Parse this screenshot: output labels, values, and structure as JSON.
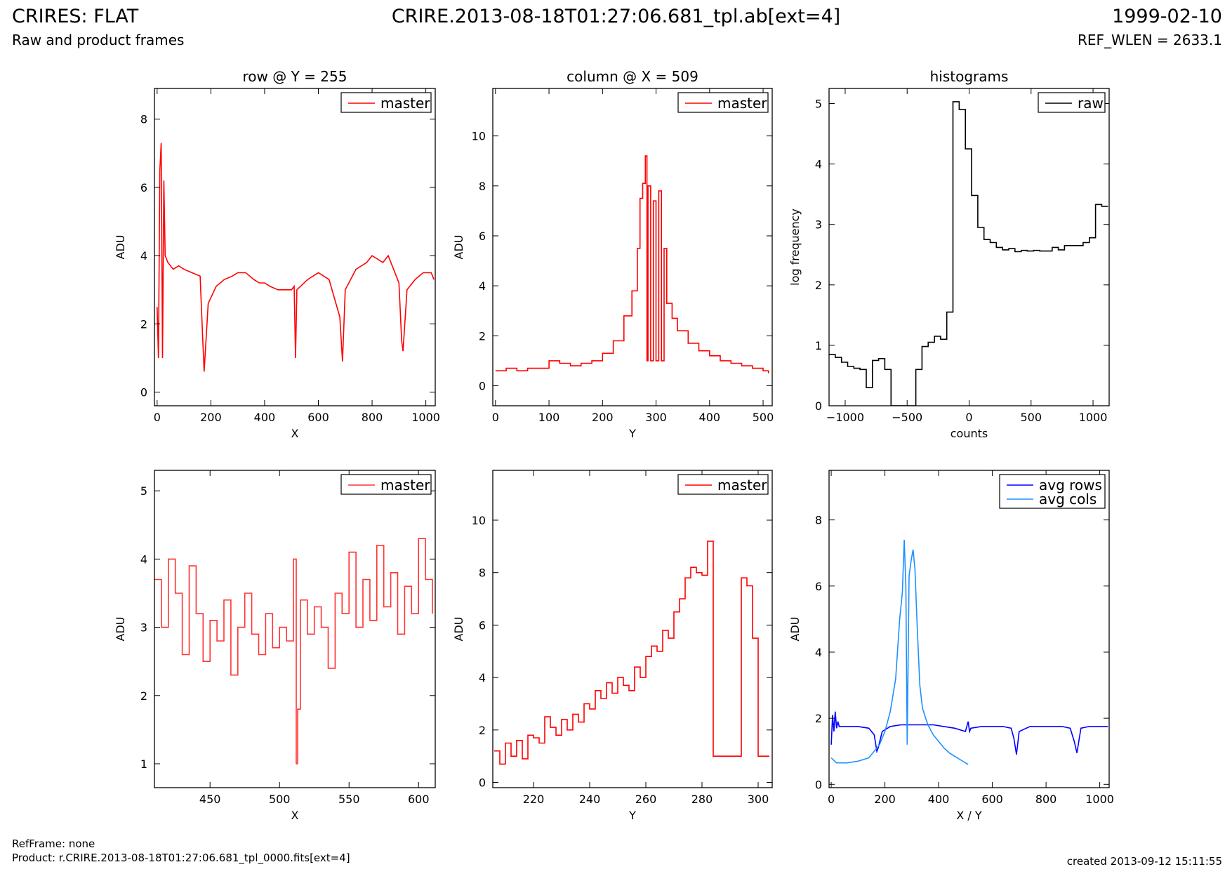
{
  "header": {
    "title": "CRIRES: FLAT",
    "subtitle": "Raw and product frames",
    "file_ext": "CRIRE.2013-08-18T01:27:06.681_tpl.ab[ext=4]",
    "date": "1999-02-10",
    "ref_wlen": "REF_WLEN = 2633.1"
  },
  "footer": {
    "refframe": "RefFrame: none",
    "product": "Product: r.CRIRE.2013-08-18T01:27:06.681_tpl_0000.fits[ext=4]",
    "created": "created 2013-09-12 15:11:55"
  },
  "colors": {
    "master": "#ff0000",
    "raw": "#000000",
    "avg_rows": "#0000ff",
    "avg_cols": "#1e90ff"
  },
  "chart_data": [
    {
      "type": "line",
      "title": "row @ Y = 255",
      "xlabel": "X",
      "ylabel": "ADU",
      "xlim": [
        -10,
        1035
      ],
      "ylim": [
        -0.4,
        8.9
      ],
      "xticks": [
        0,
        200,
        400,
        600,
        800,
        1000
      ],
      "yticks": [
        0,
        2,
        4,
        6,
        8
      ],
      "legend_position": "top-right",
      "series": [
        {
          "name": "master",
          "color": "#ff0000",
          "step": false,
          "x": [
            0,
            5,
            10,
            15,
            20,
            25,
            30,
            40,
            60,
            80,
            100,
            130,
            160,
            170,
            175,
            190,
            220,
            250,
            280,
            300,
            330,
            360,
            380,
            400,
            420,
            450,
            480,
            500,
            510,
            515,
            520,
            560,
            600,
            640,
            680,
            690,
            700,
            740,
            780,
            800,
            820,
            840,
            860,
            880,
            900,
            910,
            915,
            930,
            960,
            990,
            1020,
            1030
          ],
          "y": [
            2.5,
            1.0,
            6.5,
            7.3,
            1.0,
            6.2,
            4.0,
            3.8,
            3.6,
            3.7,
            3.6,
            3.5,
            3.4,
            1.5,
            0.6,
            2.6,
            3.1,
            3.3,
            3.4,
            3.5,
            3.5,
            3.3,
            3.2,
            3.2,
            3.1,
            3.0,
            3.0,
            3.0,
            3.1,
            1.0,
            3.0,
            3.3,
            3.5,
            3.3,
            2.2,
            0.9,
            3.0,
            3.6,
            3.8,
            4.0,
            3.9,
            3.8,
            4.0,
            3.6,
            3.2,
            1.5,
            1.2,
            3.0,
            3.3,
            3.5,
            3.5,
            3.3
          ]
        }
      ]
    },
    {
      "type": "line",
      "title": "column @ X = 509",
      "xlabel": "Y",
      "ylabel": "ADU",
      "xlim": [
        -5,
        517
      ],
      "ylim": [
        -0.8,
        11.9
      ],
      "xticks": [
        0,
        100,
        200,
        300,
        400,
        500
      ],
      "yticks": [
        0,
        2,
        4,
        6,
        8,
        10
      ],
      "legend_position": "top-right",
      "series": [
        {
          "name": "master",
          "color": "#ff0000",
          "step": true,
          "x": [
            0,
            20,
            40,
            60,
            80,
            100,
            120,
            140,
            160,
            180,
            200,
            220,
            240,
            255,
            265,
            270,
            275,
            280,
            283,
            285,
            290,
            295,
            300,
            305,
            310,
            315,
            320,
            330,
            340,
            360,
            380,
            400,
            420,
            440,
            460,
            480,
            500,
            510
          ],
          "y": [
            0.6,
            0.7,
            0.6,
            0.7,
            0.7,
            1.0,
            0.9,
            0.8,
            0.9,
            1.0,
            1.3,
            1.8,
            2.8,
            3.8,
            5.5,
            7.5,
            8.1,
            9.2,
            1.0,
            8.0,
            1.0,
            7.4,
            1.0,
            7.8,
            1.0,
            5.5,
            3.3,
            2.7,
            2.2,
            1.7,
            1.4,
            1.2,
            1.0,
            0.9,
            0.8,
            0.7,
            0.6,
            0.5
          ]
        }
      ]
    },
    {
      "type": "line",
      "title": "histograms",
      "xlabel": "counts",
      "ylabel": "log frequency",
      "xlim": [
        -1130,
        1130
      ],
      "ylim": [
        0,
        5.25
      ],
      "xticks": [
        -1000,
        -500,
        0,
        500,
        1000
      ],
      "yticks": [
        0,
        1,
        2,
        3,
        4,
        5
      ],
      "legend_position": "top-right",
      "series": [
        {
          "name": "raw",
          "color": "#000000",
          "step": true,
          "x": [
            -1130,
            -1080,
            -1030,
            -980,
            -930,
            -880,
            -830,
            -780,
            -730,
            -680,
            -630,
            -580,
            -530,
            -480,
            -430,
            -380,
            -330,
            -280,
            -230,
            -180,
            -130,
            -80,
            -30,
            20,
            70,
            120,
            170,
            220,
            270,
            320,
            370,
            420,
            470,
            520,
            570,
            620,
            670,
            720,
            770,
            820,
            870,
            920,
            970,
            1020,
            1070,
            1120
          ],
          "y": [
            0.85,
            0.8,
            0.72,
            0.65,
            0.62,
            0.6,
            0.3,
            0.75,
            0.78,
            0.6,
            0.0,
            0.0,
            0.0,
            0.0,
            0.6,
            0.98,
            1.05,
            1.15,
            1.1,
            1.55,
            5.03,
            4.9,
            4.25,
            3.48,
            2.95,
            2.75,
            2.7,
            2.62,
            2.58,
            2.6,
            2.55,
            2.57,
            2.56,
            2.57,
            2.56,
            2.56,
            2.62,
            2.58,
            2.65,
            2.65,
            2.65,
            2.7,
            2.78,
            3.33,
            3.3,
            3.3
          ]
        }
      ]
    },
    {
      "type": "line",
      "title": "",
      "xlabel": "X",
      "ylabel": "ADU",
      "xlim": [
        410,
        612
      ],
      "ylim": [
        0.65,
        5.3
      ],
      "xticks": [
        450,
        500,
        550,
        600
      ],
      "yticks": [
        1,
        2,
        3,
        4,
        5
      ],
      "legend_position": "top-right",
      "series": [
        {
          "name": "master",
          "color": "#ff3333",
          "step": true,
          "x": [
            410,
            415,
            420,
            425,
            430,
            435,
            440,
            445,
            450,
            455,
            460,
            465,
            470,
            475,
            480,
            485,
            490,
            495,
            500,
            505,
            510,
            512,
            513,
            515,
            520,
            525,
            530,
            535,
            540,
            545,
            550,
            555,
            560,
            565,
            570,
            575,
            580,
            585,
            590,
            595,
            600,
            605,
            610
          ],
          "y": [
            3.7,
            3.0,
            4.0,
            3.5,
            2.6,
            3.9,
            3.2,
            2.5,
            3.1,
            2.8,
            3.4,
            2.3,
            3.0,
            3.5,
            2.9,
            2.6,
            3.2,
            2.7,
            3.0,
            2.8,
            4.0,
            1.0,
            1.8,
            3.4,
            2.9,
            3.3,
            3.0,
            2.4,
            3.5,
            3.2,
            4.1,
            3.0,
            3.7,
            3.1,
            4.2,
            3.3,
            3.8,
            2.9,
            3.6,
            3.2,
            4.3,
            3.7,
            3.2
          ]
        }
      ]
    },
    {
      "type": "line",
      "title": "",
      "xlabel": "Y",
      "ylabel": "ADU",
      "xlim": [
        205.5,
        305
      ],
      "ylim": [
        -0.2,
        11.9
      ],
      "xticks": [
        220,
        240,
        260,
        280,
        300
      ],
      "yticks": [
        0,
        2,
        4,
        6,
        8,
        10
      ],
      "legend_position": "top-right",
      "series": [
        {
          "name": "master",
          "color": "#ff0000",
          "step": true,
          "x": [
            206,
            208,
            210,
            212,
            214,
            216,
            218,
            220,
            222,
            224,
            226,
            228,
            230,
            232,
            234,
            236,
            238,
            240,
            242,
            244,
            246,
            248,
            250,
            252,
            254,
            256,
            258,
            260,
            262,
            264,
            266,
            268,
            270,
            272,
            274,
            276,
            278,
            280,
            282,
            284,
            286,
            288,
            290,
            292,
            294,
            296,
            298,
            300,
            302,
            304
          ],
          "y": [
            1.2,
            0.7,
            1.5,
            1.0,
            1.6,
            0.9,
            1.8,
            1.7,
            1.5,
            2.5,
            2.1,
            1.8,
            2.4,
            2.0,
            2.6,
            2.3,
            3.0,
            2.8,
            3.5,
            3.2,
            3.8,
            3.4,
            4.0,
            3.7,
            3.5,
            4.4,
            4.0,
            4.8,
            5.2,
            5.0,
            5.8,
            5.5,
            6.5,
            7.0,
            7.8,
            8.2,
            8.0,
            7.9,
            9.2,
            1.0,
            1.0,
            1.0,
            1.0,
            1.0,
            7.8,
            7.5,
            5.5,
            1.0,
            1.0,
            1.0
          ]
        }
      ]
    },
    {
      "type": "line",
      "title": "",
      "xlabel": "X / Y",
      "ylabel": "ADU",
      "xlim": [
        -8,
        1035
      ],
      "ylim": [
        -0.1,
        9.5
      ],
      "xticks": [
        0,
        200,
        400,
        600,
        800,
        1000
      ],
      "yticks": [
        0,
        2,
        4,
        6,
        8
      ],
      "legend_position": "top-right",
      "series": [
        {
          "name": "avg rows",
          "color": "#0000ff",
          "step": false,
          "x": [
            0,
            5,
            10,
            15,
            20,
            25,
            30,
            60,
            100,
            140,
            160,
            170,
            175,
            190,
            220,
            260,
            300,
            340,
            380,
            420,
            460,
            500,
            510,
            515,
            520,
            560,
            600,
            640,
            670,
            680,
            690,
            700,
            740,
            780,
            820,
            860,
            890,
            905,
            915,
            930,
            960,
            1000,
            1030
          ],
          "y": [
            1.2,
            2.1,
            1.6,
            2.2,
            1.7,
            1.9,
            1.75,
            1.75,
            1.75,
            1.7,
            1.5,
            1.0,
            1.1,
            1.6,
            1.75,
            1.8,
            1.8,
            1.8,
            1.8,
            1.75,
            1.7,
            1.6,
            1.9,
            1.6,
            1.7,
            1.75,
            1.75,
            1.75,
            1.7,
            1.4,
            0.9,
            1.6,
            1.75,
            1.75,
            1.75,
            1.75,
            1.7,
            1.3,
            0.95,
            1.7,
            1.75,
            1.75,
            1.75
          ]
        }
      ]
    },
    {
      "type": "line",
      "title": "",
      "xlabel": "",
      "ylabel": "",
      "xlim": [
        -8,
        1035
      ],
      "ylim": [
        -0.1,
        9.5
      ],
      "xticks": [],
      "yticks": [],
      "legend_position": "top-right",
      "series": [
        {
          "name": "avg cols",
          "color": "#1e90ff",
          "step": false,
          "x": [
            0,
            20,
            60,
            100,
            140,
            180,
            200,
            220,
            240,
            255,
            265,
            272,
            278,
            283,
            290,
            298,
            305,
            312,
            320,
            330,
            340,
            360,
            380,
            400,
            420,
            440,
            460,
            480,
            500,
            510
          ],
          "y": [
            0.8,
            0.65,
            0.65,
            0.7,
            0.8,
            1.2,
            1.6,
            2.2,
            3.2,
            5.0,
            5.8,
            7.4,
            6.0,
            1.2,
            6.3,
            6.8,
            7.1,
            6.5,
            4.8,
            3.0,
            2.3,
            1.8,
            1.5,
            1.3,
            1.1,
            0.95,
            0.85,
            0.75,
            0.65,
            0.6
          ]
        }
      ]
    }
  ]
}
